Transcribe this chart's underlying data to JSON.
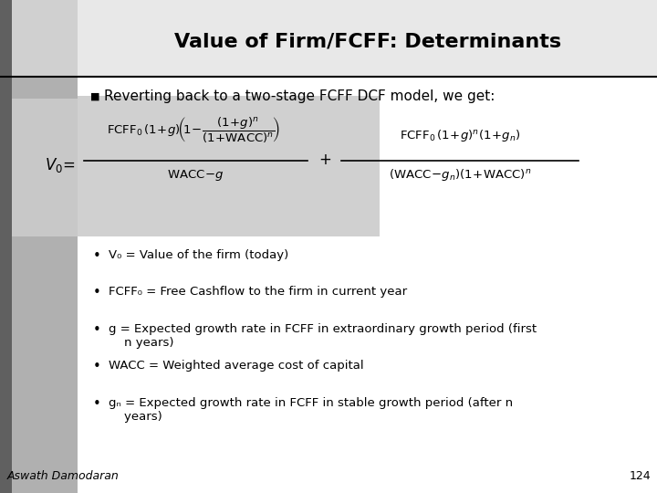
{
  "title": "Value of Firm/FCFF: Determinants",
  "title_fontsize": 16,
  "bg_color": "#ffffff",
  "sidebar_dark_color": "#808080",
  "sidebar_mid_color": "#a8a8a8",
  "sidebar_light_color": "#c8c8c8",
  "header_bg_color": "#e0e0e0",
  "formula_bg_color": "#c8c8c8",
  "bullet_text": "Reverting back to a two-stage FCFF DCF model, we get:",
  "bullet_fontsize": 11,
  "bullet_points": [
    "V₀ = Value of the firm (today)",
    "FCFF₀ = Free Cashflow to the firm in current year",
    "g = Expected growth rate in FCFF in extraordinary growth period (first\n    n years)",
    "WACC = Weighted average cost of capital",
    "gₙ = Expected growth rate in FCFF in stable growth period (after n\n    years)"
  ],
  "bullet_pts_fontsize": 9.5,
  "footer_author": "Aswath Damodaran",
  "footer_page": "124",
  "footer_fontsize": 9
}
